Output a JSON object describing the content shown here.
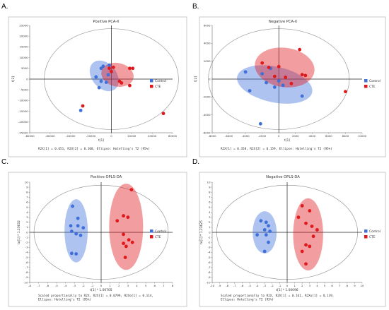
{
  "colors": {
    "control": "#3f6fd8",
    "cte": "#e0191c"
  },
  "chart_data": [
    {
      "letter": "A.",
      "type": "scatter",
      "title": "Positive PCA-X",
      "xlabel": "t[1]",
      "ylabel": "t[2]",
      "xlim": [
        -80000,
        60000
      ],
      "ylim": [
        -25000,
        25000
      ],
      "xticks": [
        "-80000",
        "-60000",
        "-40000",
        "-20000",
        "0",
        "20000",
        "40000",
        "60000"
      ],
      "yticks": [
        "-25000",
        "-20000",
        "-15000",
        "-10000",
        "-5000",
        "0",
        "5000",
        "10000",
        "15000",
        "20000",
        "25000"
      ],
      "caption": "R2X[1] = 0.651, R2X[2] = 0.108, Ellipse: Hotelling's T2 (95%)",
      "legend": [
        "Control",
        "CTE"
      ],
      "series": [
        {
          "name": "Control",
          "points": [
            [
              -30000,
              -14600
            ],
            [
              -15000,
              1000
            ],
            [
              -12000,
              -4000
            ],
            [
              -10000,
              -1000
            ],
            [
              -10000,
              5000
            ],
            [
              -8000,
              6000
            ],
            [
              -5000,
              -1500
            ],
            [
              -2000,
              6500
            ],
            [
              -3000,
              2000
            ]
          ]
        },
        {
          "name": "CTE",
          "points": [
            [
              -28000,
              -12500
            ],
            [
              -2000,
              5000
            ],
            [
              0,
              3500
            ],
            [
              2000,
              5500
            ],
            [
              8000,
              -1000
            ],
            [
              10000,
              -1800
            ],
            [
              18000,
              -3000
            ],
            [
              18000,
              5000
            ],
            [
              21000,
              5000
            ],
            [
              51000,
              -16000
            ]
          ]
        }
      ],
      "ellipses": [
        {
          "group": "Control",
          "cx": -7000,
          "cy": 1500,
          "rx": 12000,
          "ry": 8000,
          "angle": 40
        },
        {
          "group": "CTE",
          "cx": 6000,
          "cy": 2000,
          "rx": 16000,
          "ry": 5500,
          "angle": -12
        }
      ]
    },
    {
      "letter": "B.",
      "type": "scatter",
      "title": "Negative PCA-X",
      "xlabel": "t[1]",
      "ylabel": "t[2]",
      "xlim": [
        -8000,
        10000
      ],
      "ylim": [
        -6000,
        6000
      ],
      "xticks": [
        "-8000",
        "-6000",
        "-4000",
        "-2000",
        "0",
        "2000",
        "4000",
        "6000",
        "8000",
        "10000"
      ],
      "yticks": [
        "-6000",
        "-4000",
        "-2000",
        "0",
        "2000",
        "4000",
        "6000"
      ],
      "caption": "R2X[1] = 0.358, R2X[2] = 0.159, Ellipse: Hotelling's T2 (95%)",
      "legend": [
        "Control",
        "CTE"
      ],
      "series": [
        {
          "name": "Control",
          "points": [
            [
              -4000,
              800
            ],
            [
              -3500,
              -1300
            ],
            [
              -2000,
              600
            ],
            [
              -1500,
              -400
            ],
            [
              -1000,
              1200
            ],
            [
              -500,
              -900
            ],
            [
              0,
              -200
            ],
            [
              500,
              -700
            ],
            [
              2800,
              -1900
            ],
            [
              -2200,
              -5000
            ]
          ]
        },
        {
          "name": "CTE",
          "points": [
            [
              -2000,
              1800
            ],
            [
              -1200,
              1300
            ],
            [
              -500,
              300
            ],
            [
              0,
              1400
            ],
            [
              800,
              200
            ],
            [
              1500,
              -500
            ],
            [
              2500,
              3300
            ],
            [
              2800,
              500
            ],
            [
              3200,
              400
            ],
            [
              8000,
              -1400
            ]
          ]
        }
      ],
      "ellipses": [
        {
          "group": "Control",
          "cx": -500,
          "cy": -600,
          "rx": 4600,
          "ry": 2000,
          "angle": -12
        },
        {
          "group": "CTE",
          "cx": 700,
          "cy": 1300,
          "rx": 3600,
          "ry": 2200,
          "angle": -8
        }
      ]
    },
    {
      "letter": "C.",
      "type": "scatter",
      "title": "Positive OPLS-DA",
      "xlabel": "t[1] * 1.00705",
      "ylabel": "to[1] * 1.23632",
      "xlim": [
        -8,
        8
      ],
      "ylim": [
        -10,
        10
      ],
      "xticks": [
        "-8",
        "-7",
        "-6",
        "-5",
        "-4",
        "-3",
        "-2",
        "-1",
        "0",
        "1",
        "2",
        "3",
        "4",
        "5",
        "6",
        "7",
        "8"
      ],
      "yticks": [
        "-10",
        "-9",
        "-8",
        "-7",
        "-6",
        "-5",
        "-4",
        "-3",
        "-2",
        "-1",
        "0",
        "1",
        "2",
        "3",
        "4",
        "5",
        "6",
        "7",
        "8",
        "9",
        "10"
      ],
      "caption": "Scaled proportionally to R2X, R2X[1] = 0.0799, R2Xo[1] = 0.114, Ellipse: Hotelling's T2 (95%)",
      "legend": [
        "Control",
        "CTE"
      ],
      "series": [
        {
          "name": "Control",
          "points": [
            [
              -3.2,
              5.2
            ],
            [
              -2.6,
              2.8
            ],
            [
              -3.4,
              1.3
            ],
            [
              -2.6,
              1.3
            ],
            [
              -2.0,
              0.9
            ],
            [
              -3.3,
              0.2
            ],
            [
              -2.8,
              -0.3
            ],
            [
              -2.3,
              -0.6
            ],
            [
              -3.3,
              -4.2
            ],
            [
              -2.8,
              -4.3
            ]
          ]
        },
        {
          "name": "CTE",
          "points": [
            [
              1.8,
              2.3
            ],
            [
              2.5,
              3.3
            ],
            [
              3.0,
              3.0
            ],
            [
              3.4,
              8.5
            ],
            [
              2.5,
              -0.4
            ],
            [
              2.5,
              -2.2
            ],
            [
              3.1,
              -1.5
            ],
            [
              3.5,
              -2.0
            ],
            [
              2.8,
              -2.8
            ],
            [
              2.7,
              -5.0
            ]
          ]
        }
      ],
      "ellipses": [
        {
          "group": "Control",
          "cx": -2.8,
          "cy": 0.3,
          "rx": 1.3,
          "ry": 6.3,
          "angle": 0
        },
        {
          "group": "CTE",
          "cx": 2.8,
          "cy": 1.1,
          "rx": 1.9,
          "ry": 8.6,
          "angle": 0
        }
      ]
    },
    {
      "letter": "D.",
      "type": "scatter",
      "title": "Negative OPLS-DA",
      "xlabel": "t[1] * 1.00096",
      "ylabel": "to[1] * 1.23625",
      "xlim": [
        -10,
        10
      ],
      "ylim": [
        -10,
        10
      ],
      "xticks": [
        "-10",
        "-9",
        "-8",
        "-7",
        "-6",
        "-5",
        "-4",
        "-3",
        "-2",
        "-1",
        "0",
        "1",
        "2",
        "3",
        "4",
        "5",
        "6",
        "7",
        "8",
        "9",
        "10"
      ],
      "yticks": [
        "-10",
        "-9",
        "-8",
        "-7",
        "-6",
        "-5",
        "-4",
        "-3",
        "-2",
        "-1",
        "0",
        "1",
        "2",
        "3",
        "4",
        "5",
        "6",
        "7",
        "8",
        "9",
        "10"
      ],
      "caption": "Scaled proportionally to R2X, R2X[1] = 0.161, R2Xo[1] = 0.139, Ellipse: Hotelling's T2 (95%)",
      "legend": [
        "Control",
        "CTE"
      ],
      "series": [
        {
          "name": "Control",
          "points": [
            [
              -3.5,
              2.3
            ],
            [
              -2.8,
              2.0
            ],
            [
              -2.5,
              1.3
            ],
            [
              -3.0,
              0.5
            ],
            [
              -2.3,
              0.2
            ],
            [
              -2.8,
              -0.5
            ],
            [
              -4.0,
              -0.5
            ],
            [
              -2.5,
              -2.0
            ],
            [
              -3.0,
              -3.8
            ]
          ]
        },
        {
          "name": "CTE",
          "points": [
            [
              2.0,
              5.3
            ],
            [
              3.0,
              4.3
            ],
            [
              1.5,
              3.0
            ],
            [
              2.5,
              1.8
            ],
            [
              3.3,
              1.2
            ],
            [
              4.0,
              0.5
            ],
            [
              3.5,
              -0.8
            ],
            [
              2.5,
              -2.5
            ],
            [
              3.0,
              -2.8
            ],
            [
              2.0,
              -3.8
            ],
            [
              2.5,
              -6.3
            ]
          ]
        }
      ],
      "ellipses": [
        {
          "group": "Control",
          "cx": -3.0,
          "cy": 0.0,
          "rx": 1.6,
          "ry": 4.2,
          "angle": 0
        },
        {
          "group": "CTE",
          "cx": 2.8,
          "cy": -0.4,
          "rx": 2.0,
          "ry": 7.2,
          "angle": 0
        }
      ]
    }
  ]
}
